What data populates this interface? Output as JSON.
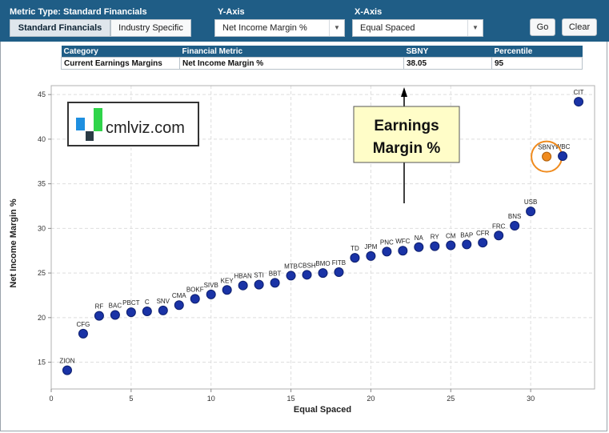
{
  "toolbar": {
    "metric_type_label": "Metric Type: Standard Financials",
    "metric_tabs": [
      "Standard Financials",
      "Industry Specific"
    ],
    "y_axis_label": "Y-Axis",
    "y_axis_value": "Net Income Margin %",
    "x_axis_label": "X-Axis",
    "x_axis_value": "Equal Spaced",
    "go_label": "Go",
    "clear_label": "Clear"
  },
  "metric_table": {
    "headers": [
      "Category",
      "Financial Metric",
      "SBNY",
      "Percentile"
    ],
    "row": [
      "Current Earnings Margins",
      "Net Income Margin %",
      "38.05",
      "95"
    ]
  },
  "logo_text": "cmlviz.com",
  "callout_text": [
    "Earnings",
    "Margin %"
  ],
  "colors": {
    "header": "#1f5d86",
    "point": "#1a33a6",
    "highlight": "#f08b1e",
    "callout_bg": "#fffdc8"
  },
  "chart_data": {
    "type": "scatter",
    "xlabel": "Equal Spaced",
    "ylabel": "Net Income Margin %",
    "xlim": [
      0,
      34
    ],
    "ylim": [
      12,
      46
    ],
    "xticks": [
      0,
      5,
      10,
      15,
      20,
      25,
      30
    ],
    "yticks": [
      15,
      20,
      25,
      30,
      35,
      40,
      45
    ],
    "grid": true,
    "highlight": "SBNY",
    "points": [
      {
        "label": "ZION",
        "x": 1,
        "y": 14.1
      },
      {
        "label": "CFG",
        "x": 2,
        "y": 18.2
      },
      {
        "label": "RF",
        "x": 3,
        "y": 20.2
      },
      {
        "label": "BAC",
        "x": 4,
        "y": 20.3
      },
      {
        "label": "PBCT",
        "x": 5,
        "y": 20.6
      },
      {
        "label": "C",
        "x": 6,
        "y": 20.7
      },
      {
        "label": "SNV",
        "x": 7,
        "y": 20.8
      },
      {
        "label": "CMA",
        "x": 8,
        "y": 21.4
      },
      {
        "label": "BOKF",
        "x": 9,
        "y": 22.1
      },
      {
        "label": "SIVB",
        "x": 10,
        "y": 22.6
      },
      {
        "label": "KEY",
        "x": 11,
        "y": 23.1
      },
      {
        "label": "HBAN",
        "x": 12,
        "y": 23.6
      },
      {
        "label": "STI",
        "x": 13,
        "y": 23.7
      },
      {
        "label": "BBT",
        "x": 14,
        "y": 23.9
      },
      {
        "label": "MTB",
        "x": 15,
        "y": 24.7
      },
      {
        "label": "CBSH",
        "x": 16,
        "y": 24.8
      },
      {
        "label": "BMO",
        "x": 17,
        "y": 25.0
      },
      {
        "label": "FITB",
        "x": 18,
        "y": 25.1
      },
      {
        "label": "TD",
        "x": 19,
        "y": 26.7
      },
      {
        "label": "JPM",
        "x": 20,
        "y": 26.9
      },
      {
        "label": "PNC",
        "x": 21,
        "y": 27.4
      },
      {
        "label": "WFC",
        "x": 22,
        "y": 27.5
      },
      {
        "label": "NA",
        "x": 23,
        "y": 27.9
      },
      {
        "label": "RY",
        "x": 24,
        "y": 28.0
      },
      {
        "label": "CM",
        "x": 25,
        "y": 28.1
      },
      {
        "label": "BAP",
        "x": 26,
        "y": 28.2
      },
      {
        "label": "CFR",
        "x": 27,
        "y": 28.4
      },
      {
        "label": "FRC",
        "x": 28,
        "y": 29.2
      },
      {
        "label": "BNS",
        "x": 29,
        "y": 30.3
      },
      {
        "label": "USB",
        "x": 30,
        "y": 31.9
      },
      {
        "label": "SBNY",
        "x": 31,
        "y": 38.05
      },
      {
        "label": "WBC",
        "x": 32,
        "y": 38.1
      },
      {
        "label": "CIT",
        "x": 33,
        "y": 44.2
      }
    ]
  }
}
